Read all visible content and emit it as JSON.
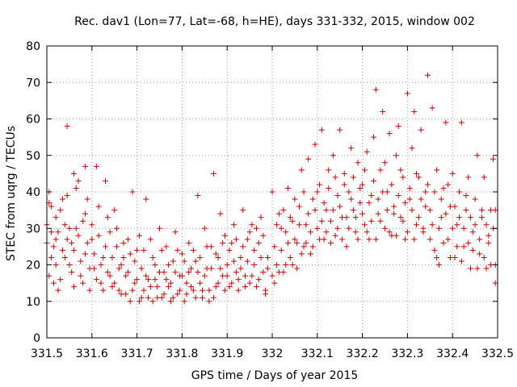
{
  "chart_data": {
    "type": "scatter",
    "title": "Rec. dav1 (Lon=77, Lat=-68, h=HE), days 331-332, 2015, window 002",
    "xlabel": "GPS time / Days of year 2015",
    "ylabel": "STEC from uqrg / TECUs",
    "xlim": [
      331.5,
      332.5
    ],
    "ylim": [
      0,
      80
    ],
    "xticks": [
      "331.5",
      "331.6",
      "331.7",
      "331.8",
      "331.9",
      "332",
      "332.1",
      "332.2",
      "332.3",
      "332.4",
      "332.5"
    ],
    "xtick_values": [
      331.5,
      331.6,
      331.7,
      331.8,
      331.9,
      332.0,
      332.1,
      332.2,
      332.3,
      332.4,
      332.5
    ],
    "yticks": [
      "0",
      "10",
      "20",
      "30",
      "40",
      "50",
      "60",
      "70",
      "80"
    ],
    "ytick_values": [
      0,
      10,
      20,
      30,
      40,
      50,
      60,
      70,
      80
    ],
    "grid": true,
    "marker": "plus",
    "color": "#cc0000",
    "points": [
      [
        331.505,
        40
      ],
      [
        331.505,
        37
      ],
      [
        331.51,
        29
      ],
      [
        331.51,
        22
      ],
      [
        331.515,
        15
      ],
      [
        331.52,
        27
      ],
      [
        331.52,
        33
      ],
      [
        331.525,
        13
      ],
      [
        331.53,
        35
      ],
      [
        331.535,
        24
      ],
      [
        331.54,
        31
      ],
      [
        331.545,
        58
      ],
      [
        331.545,
        39
      ],
      [
        331.55,
        20
      ],
      [
        331.555,
        26
      ],
      [
        331.56,
        45
      ],
      [
        331.56,
        14
      ],
      [
        331.565,
        30
      ],
      [
        331.57,
        43
      ],
      [
        331.575,
        17
      ],
      [
        331.58,
        32
      ],
      [
        331.585,
        47
      ],
      [
        331.585,
        23
      ],
      [
        331.59,
        38
      ],
      [
        331.595,
        13
      ],
      [
        331.6,
        27
      ],
      [
        331.605,
        19
      ],
      [
        331.61,
        47
      ],
      [
        331.615,
        36
      ],
      [
        331.62,
        15
      ],
      [
        331.625,
        22
      ],
      [
        331.63,
        43
      ],
      [
        331.635,
        18
      ],
      [
        331.64,
        29
      ],
      [
        331.645,
        14
      ],
      [
        331.65,
        35
      ],
      [
        331.655,
        25
      ],
      [
        331.66,
        19
      ],
      [
        331.665,
        12
      ],
      [
        331.67,
        22
      ],
      [
        331.675,
        17
      ],
      [
        331.68,
        27
      ],
      [
        331.685,
        10
      ],
      [
        331.69,
        40
      ],
      [
        331.695,
        15
      ],
      [
        331.7,
        24
      ],
      [
        331.705,
        10
      ],
      [
        331.71,
        19
      ],
      [
        331.715,
        13
      ],
      [
        331.72,
        38
      ],
      [
        331.725,
        16
      ],
      [
        331.73,
        27
      ],
      [
        331.735,
        10
      ],
      [
        331.74,
        20
      ],
      [
        331.745,
        14
      ],
      [
        331.75,
        30
      ],
      [
        331.755,
        11
      ],
      [
        331.76,
        18
      ],
      [
        331.765,
        25
      ],
      [
        331.77,
        14
      ],
      [
        331.775,
        10
      ],
      [
        331.78,
        21
      ],
      [
        331.785,
        29
      ],
      [
        331.79,
        12
      ],
      [
        331.795,
        17
      ],
      [
        331.8,
        23
      ],
      [
        331.805,
        10
      ],
      [
        331.81,
        15
      ],
      [
        331.815,
        26
      ],
      [
        331.82,
        19
      ],
      [
        331.825,
        13
      ],
      [
        331.83,
        21
      ],
      [
        331.835,
        39
      ],
      [
        331.84,
        15
      ],
      [
        331.845,
        11
      ],
      [
        331.85,
        30
      ],
      [
        331.855,
        19
      ],
      [
        331.86,
        10
      ],
      [
        331.865,
        25
      ],
      [
        331.87,
        45
      ],
      [
        331.875,
        14
      ],
      [
        331.88,
        22
      ],
      [
        331.885,
        34
      ],
      [
        331.89,
        17
      ],
      [
        331.895,
        28
      ],
      [
        331.9,
        20
      ],
      [
        331.905,
        14
      ],
      [
        331.91,
        26
      ],
      [
        331.915,
        31
      ],
      [
        331.92,
        18
      ],
      [
        331.925,
        13
      ],
      [
        331.93,
        22
      ],
      [
        331.935,
        35
      ],
      [
        331.94,
        17
      ],
      [
        331.945,
        27
      ],
      [
        331.95,
        15
      ],
      [
        331.955,
        31
      ],
      [
        331.96,
        20
      ],
      [
        331.965,
        14
      ],
      [
        331.97,
        26
      ],
      [
        331.975,
        33
      ],
      [
        331.98,
        18
      ],
      [
        331.985,
        12
      ],
      [
        331.99,
        22
      ],
      [
        332.0,
        40
      ],
      [
        332.005,
        15
      ],
      [
        332.01,
        20
      ],
      [
        332.015,
        34
      ],
      [
        332.02,
        24
      ],
      [
        332.025,
        18
      ],
      [
        332.03,
        29
      ],
      [
        332.035,
        41
      ],
      [
        332.04,
        22
      ],
      [
        332.045,
        32
      ],
      [
        332.05,
        27
      ],
      [
        332.055,
        19
      ],
      [
        332.06,
        36
      ],
      [
        332.065,
        46
      ],
      [
        332.07,
        25
      ],
      [
        332.075,
        31
      ],
      [
        332.08,
        49
      ],
      [
        332.085,
        23
      ],
      [
        332.09,
        38
      ],
      [
        332.095,
        53
      ],
      [
        332.1,
        30
      ],
      [
        332.105,
        42
      ],
      [
        332.11,
        57
      ],
      [
        332.115,
        27
      ],
      [
        332.12,
        35
      ],
      [
        332.125,
        46
      ],
      [
        332.13,
        32
      ],
      [
        332.135,
        50
      ],
      [
        332.14,
        28
      ],
      [
        332.145,
        39
      ],
      [
        332.15,
        57
      ],
      [
        332.155,
        33
      ],
      [
        332.16,
        45
      ],
      [
        332.165,
        25
      ],
      [
        332.17,
        40
      ],
      [
        332.175,
        52
      ],
      [
        332.18,
        35
      ],
      [
        332.185,
        29
      ],
      [
        332.19,
        48
      ],
      [
        332.195,
        37
      ],
      [
        332.2,
        42
      ],
      [
        332.205,
        31
      ],
      [
        332.21,
        51
      ],
      [
        332.215,
        27
      ],
      [
        332.22,
        39
      ],
      [
        332.225,
        55
      ],
      [
        332.23,
        68
      ],
      [
        332.235,
        34
      ],
      [
        332.24,
        46
      ],
      [
        332.245,
        62
      ],
      [
        332.25,
        30
      ],
      [
        332.255,
        40
      ],
      [
        332.26,
        56
      ],
      [
        332.265,
        28
      ],
      [
        332.27,
        36
      ],
      [
        332.275,
        50
      ],
      [
        332.28,
        58
      ],
      [
        332.285,
        33
      ],
      [
        332.29,
        44
      ],
      [
        332.295,
        27
      ],
      [
        332.3,
        67
      ],
      [
        332.305,
        38
      ],
      [
        332.31,
        52
      ],
      [
        332.315,
        62
      ],
      [
        332.32,
        31
      ],
      [
        332.325,
        44
      ],
      [
        332.33,
        57
      ],
      [
        332.335,
        29
      ],
      [
        332.34,
        40
      ],
      [
        332.345,
        72
      ],
      [
        332.35,
        35
      ],
      [
        332.355,
        63
      ],
      [
        332.36,
        24
      ],
      [
        332.365,
        46
      ],
      [
        332.37,
        20
      ],
      [
        332.375,
        33
      ],
      [
        332.38,
        41
      ],
      [
        332.385,
        59
      ],
      [
        332.39,
        27
      ],
      [
        332.395,
        36
      ],
      [
        332.4,
        45
      ],
      [
        332.405,
        22
      ],
      [
        332.41,
        31
      ],
      [
        332.415,
        40
      ],
      [
        332.42,
        59
      ],
      [
        332.425,
        25
      ],
      [
        332.43,
        35
      ],
      [
        332.435,
        44
      ],
      [
        332.44,
        19
      ],
      [
        332.445,
        29
      ],
      [
        332.45,
        38
      ],
      [
        332.455,
        50
      ],
      [
        332.46,
        23
      ],
      [
        332.465,
        33
      ],
      [
        332.47,
        44
      ],
      [
        332.475,
        19
      ],
      [
        332.48,
        28
      ],
      [
        332.485,
        35
      ],
      [
        332.49,
        49
      ],
      [
        332.495,
        15
      ],
      [
        332.495,
        20
      ],
      [
        331.5,
        31
      ],
      [
        331.5,
        26
      ],
      [
        331.505,
        17
      ],
      [
        331.51,
        36
      ],
      [
        331.515,
        25
      ],
      [
        331.52,
        20
      ],
      [
        331.525,
        29
      ],
      [
        331.53,
        16
      ],
      [
        331.535,
        38
      ],
      [
        331.54,
        22
      ],
      [
        331.545,
        27
      ],
      [
        331.55,
        30
      ],
      [
        331.555,
        18
      ],
      [
        331.56,
        24
      ],
      [
        331.565,
        41
      ],
      [
        331.57,
        28
      ],
      [
        331.575,
        21
      ],
      [
        331.58,
        15
      ],
      [
        331.585,
        34
      ],
      [
        331.59,
        26
      ],
      [
        331.595,
        19
      ],
      [
        331.6,
        31
      ],
      [
        331.605,
        23
      ],
      [
        331.61,
        16
      ],
      [
        331.615,
        28
      ],
      [
        331.62,
        20
      ],
      [
        331.625,
        13
      ],
      [
        331.63,
        25
      ],
      [
        331.635,
        33
      ],
      [
        331.64,
        17
      ],
      [
        331.645,
        22
      ],
      [
        331.65,
        15
      ],
      [
        331.655,
        30
      ],
      [
        331.66,
        13
      ],
      [
        331.665,
        20
      ],
      [
        331.67,
        26
      ],
      [
        331.675,
        12
      ],
      [
        331.68,
        18
      ],
      [
        331.685,
        23
      ],
      [
        331.69,
        13
      ],
      [
        331.695,
        21
      ],
      [
        331.7,
        16
      ],
      [
        331.705,
        28
      ],
      [
        331.71,
        11
      ],
      [
        331.715,
        24
      ],
      [
        331.72,
        17
      ],
      [
        331.725,
        11
      ],
      [
        331.73,
        14
      ],
      [
        331.735,
        22
      ],
      [
        331.74,
        16
      ],
      [
        331.745,
        11
      ],
      [
        331.75,
        18
      ],
      [
        331.755,
        24
      ],
      [
        331.76,
        12
      ],
      [
        331.765,
        16
      ],
      [
        331.77,
        20
      ],
      [
        331.775,
        15
      ],
      [
        331.78,
        11
      ],
      [
        331.785,
        18
      ],
      [
        331.79,
        24
      ],
      [
        331.795,
        13
      ],
      [
        331.8,
        17
      ],
      [
        331.805,
        21
      ],
      [
        331.81,
        12
      ],
      [
        331.815,
        18
      ],
      [
        331.82,
        14
      ],
      [
        331.825,
        24
      ],
      [
        331.83,
        11
      ],
      [
        331.835,
        18
      ],
      [
        331.84,
        22
      ],
      [
        331.845,
        13
      ],
      [
        331.85,
        17
      ],
      [
        331.855,
        25
      ],
      [
        331.86,
        13
      ],
      [
        331.865,
        19
      ],
      [
        331.87,
        11
      ],
      [
        331.875,
        23
      ],
      [
        331.88,
        15
      ],
      [
        331.885,
        19
      ],
      [
        331.89,
        26
      ],
      [
        331.895,
        13
      ],
      [
        331.9,
        17
      ],
      [
        331.905,
        24
      ],
      [
        331.91,
        15
      ],
      [
        331.915,
        21
      ],
      [
        331.92,
        27
      ],
      [
        331.925,
        16
      ],
      [
        331.93,
        19
      ],
      [
        331.935,
        25
      ],
      [
        331.94,
        14
      ],
      [
        331.945,
        21
      ],
      [
        331.95,
        29
      ],
      [
        331.955,
        17
      ],
      [
        331.96,
        24
      ],
      [
        331.965,
        30
      ],
      [
        331.97,
        16
      ],
      [
        331.975,
        22
      ],
      [
        331.98,
        28
      ],
      [
        331.985,
        13
      ],
      [
        331.99,
        19
      ],
      [
        332.0,
        17
      ],
      [
        332.005,
        25
      ],
      [
        332.01,
        31
      ],
      [
        332.015,
        18
      ],
      [
        332.02,
        30
      ],
      [
        332.025,
        35
      ],
      [
        332.03,
        20
      ],
      [
        332.035,
        26
      ],
      [
        332.04,
        33
      ],
      [
        332.045,
        20
      ],
      [
        332.05,
        38
      ],
      [
        332.055,
        26
      ],
      [
        332.06,
        31
      ],
      [
        332.065,
        23
      ],
      [
        332.07,
        40
      ],
      [
        332.075,
        26
      ],
      [
        332.08,
        34
      ],
      [
        332.085,
        29
      ],
      [
        332.09,
        25
      ],
      [
        332.095,
        35
      ],
      [
        332.1,
        40
      ],
      [
        332.105,
        27
      ],
      [
        332.11,
        32
      ],
      [
        332.115,
        37
      ],
      [
        332.12,
        29
      ],
      [
        332.125,
        41
      ],
      [
        332.13,
        26
      ],
      [
        332.135,
        35
      ],
      [
        332.14,
        44
      ],
      [
        332.145,
        30
      ],
      [
        332.15,
        36
      ],
      [
        332.155,
        27
      ],
      [
        332.16,
        42
      ],
      [
        332.165,
        33
      ],
      [
        332.17,
        30
      ],
      [
        332.175,
        38
      ],
      [
        332.18,
        44
      ],
      [
        332.185,
        33
      ],
      [
        332.19,
        27
      ],
      [
        332.195,
        41
      ],
      [
        332.2,
        34
      ],
      [
        332.205,
        46
      ],
      [
        332.21,
        29
      ],
      [
        332.215,
        37
      ],
      [
        332.22,
        32
      ],
      [
        332.225,
        43
      ],
      [
        332.23,
        27
      ],
      [
        332.235,
        38
      ],
      [
        332.24,
        32
      ],
      [
        332.245,
        40
      ],
      [
        332.25,
        48
      ],
      [
        332.255,
        35
      ],
      [
        332.26,
        29
      ],
      [
        332.265,
        42
      ],
      [
        332.27,
        34
      ],
      [
        332.275,
        28
      ],
      [
        332.28,
        39
      ],
      [
        332.285,
        46
      ],
      [
        332.29,
        32
      ],
      [
        332.295,
        37
      ],
      [
        332.3,
        29
      ],
      [
        332.305,
        41
      ],
      [
        332.31,
        35
      ],
      [
        332.315,
        27
      ],
      [
        332.32,
        45
      ],
      [
        332.325,
        33
      ],
      [
        332.33,
        38
      ],
      [
        332.335,
        30
      ],
      [
        332.34,
        36
      ],
      [
        332.345,
        42
      ],
      [
        332.35,
        27
      ],
      [
        332.355,
        31
      ],
      [
        332.36,
        40
      ],
      [
        332.365,
        22
      ],
      [
        332.37,
        30
      ],
      [
        332.375,
        38
      ],
      [
        332.38,
        26
      ],
      [
        332.385,
        34
      ],
      [
        332.39,
        42
      ],
      [
        332.395,
        22
      ],
      [
        332.4,
        30
      ],
      [
        332.405,
        36
      ],
      [
        332.41,
        25
      ],
      [
        332.415,
        33
      ],
      [
        332.42,
        21
      ],
      [
        332.425,
        30
      ],
      [
        332.43,
        39
      ],
      [
        332.435,
        26
      ],
      [
        332.44,
        33
      ],
      [
        332.445,
        24
      ],
      [
        332.45,
        31
      ],
      [
        332.455,
        19
      ],
      [
        332.46,
        27
      ],
      [
        332.465,
        35
      ],
      [
        332.47,
        22
      ],
      [
        332.475,
        31
      ],
      [
        332.48,
        26
      ],
      [
        332.485,
        20
      ],
      [
        332.49,
        30
      ],
      [
        332.495,
        35
      ]
    ]
  }
}
